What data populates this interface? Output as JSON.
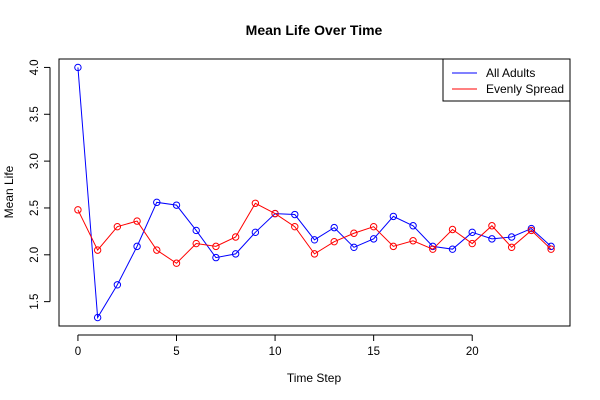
{
  "chart_data": {
    "type": "line",
    "title": "Mean Life Over Time",
    "xlabel": "Time Step",
    "ylabel": "Mean Life",
    "x": [
      0,
      1,
      2,
      3,
      4,
      5,
      6,
      7,
      8,
      9,
      10,
      11,
      12,
      13,
      14,
      15,
      16,
      17,
      18,
      19,
      20,
      21,
      22,
      23,
      24
    ],
    "xlim": [
      -0.96,
      24.96
    ],
    "ylim": [
      1.24,
      4.09
    ],
    "x_ticks": [
      0,
      5,
      10,
      15,
      20
    ],
    "y_ticks": [
      1.5,
      2.0,
      2.5,
      3.0,
      3.5,
      4.0
    ],
    "x_tick_labels": [
      "0",
      "5",
      "10",
      "15",
      "20"
    ],
    "y_tick_labels": [
      "1.5",
      "2.0",
      "2.5",
      "3.0",
      "3.5",
      "4.0"
    ],
    "grid": false,
    "legend_position": "top-right",
    "marker": "open-circle",
    "series": [
      {
        "name": "All Adults",
        "color": "#0000ff",
        "values": [
          4.0,
          1.33,
          1.68,
          2.09,
          2.56,
          2.53,
          2.26,
          1.97,
          2.01,
          2.24,
          2.44,
          2.43,
          2.16,
          2.29,
          2.08,
          2.17,
          2.41,
          2.31,
          2.09,
          2.06,
          2.24,
          2.17,
          2.19,
          2.28,
          2.09
        ]
      },
      {
        "name": "Evenly Spread",
        "color": "#ff0000",
        "values": [
          2.48,
          2.05,
          2.3,
          2.36,
          2.05,
          1.91,
          2.12,
          2.09,
          2.19,
          2.55,
          2.44,
          2.3,
          2.01,
          2.14,
          2.23,
          2.3,
          2.09,
          2.15,
          2.06,
          2.27,
          2.12,
          2.31,
          2.08,
          2.26,
          2.06
        ]
      }
    ]
  }
}
